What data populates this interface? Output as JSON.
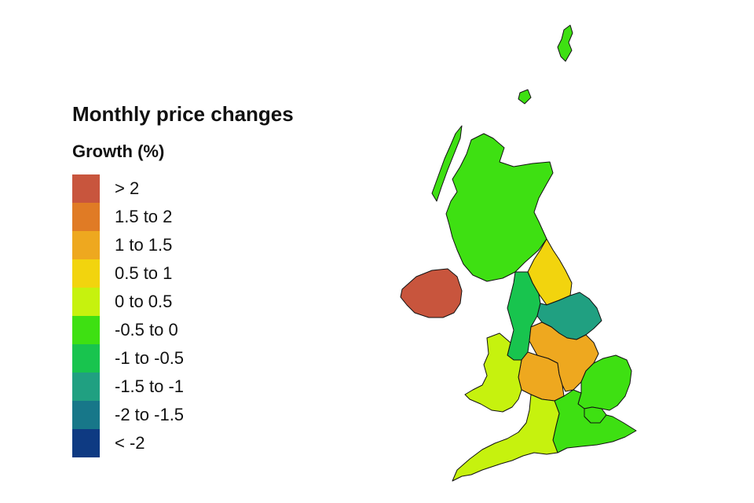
{
  "legend": {
    "title": "Monthly price changes",
    "subtitle": "Growth (%)",
    "items": [
      {
        "label": "> 2",
        "color": "#c8553d"
      },
      {
        "label": "1.5 to 2",
        "color": "#e07b25"
      },
      {
        "label": "1 to 1.5",
        "color": "#eea81f"
      },
      {
        "label": "0.5 to 1",
        "color": "#f2d40e"
      },
      {
        "label": "0 to 0.5",
        "color": "#c6f20e"
      },
      {
        "label": "-0.5 to 0",
        "color": "#3ee012"
      },
      {
        "label": "-1 to -0.5",
        "color": "#18c44e"
      },
      {
        "label": "-1.5 to -1",
        "color": "#20a081"
      },
      {
        "label": "-2 to -1.5",
        "color": "#177789"
      },
      {
        "label": "< -2",
        "color": "#0e3a82"
      }
    ]
  },
  "regions": [
    {
      "id": "scotland",
      "band": "-0.5 to 0",
      "color": "#3ee012"
    },
    {
      "id": "northern-ireland",
      "band": "> 2",
      "color": "#c8553d"
    },
    {
      "id": "north-east",
      "band": "0.5 to 1",
      "color": "#f2d40e"
    },
    {
      "id": "north-west",
      "band": "-1 to -0.5",
      "color": "#18c44e"
    },
    {
      "id": "yorkshire-and-the-humber",
      "band": "-1.5 to -1",
      "color": "#20a081"
    },
    {
      "id": "east-midlands",
      "band": "1 to 1.5",
      "color": "#eea81f"
    },
    {
      "id": "west-midlands",
      "band": "1 to 1.5",
      "color": "#eea81f"
    },
    {
      "id": "wales",
      "band": "0 to 0.5",
      "color": "#c6f20e"
    },
    {
      "id": "east-of-england",
      "band": "-0.5 to 0",
      "color": "#3ee012"
    },
    {
      "id": "london",
      "band": "-0.5 to 0",
      "color": "#3ee012"
    },
    {
      "id": "south-east",
      "band": "-0.5 to 0",
      "color": "#3ee012"
    },
    {
      "id": "south-west",
      "band": "0 to 0.5",
      "color": "#c6f20e"
    }
  ]
}
